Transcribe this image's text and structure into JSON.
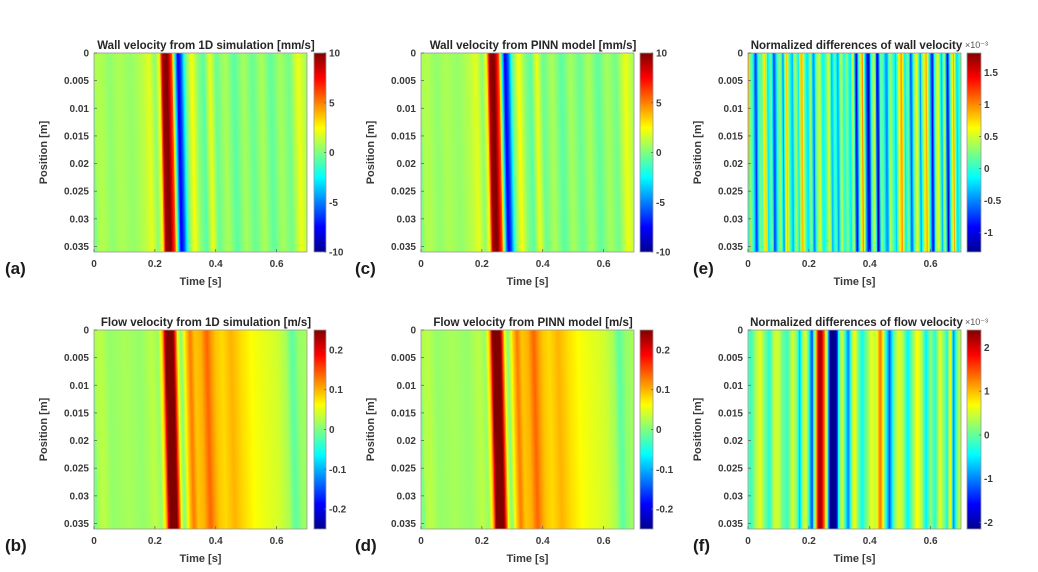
{
  "chart_data": [
    {
      "id": "a",
      "panel_label": "(a)",
      "type": "heatmap",
      "title": "Wall velocity from 1D simulation [mm/s]",
      "xlabel": "Time [s]",
      "ylabel": "Position [m]",
      "xlim": [
        0,
        0.7
      ],
      "ylim": [
        0,
        0.036
      ],
      "xticks": [
        "0",
        "0.2",
        "0.4",
        "0.6"
      ],
      "xtick_values": [
        0,
        0.2,
        0.4,
        0.6
      ],
      "yticks": [
        "0",
        "0.005",
        "0.01",
        "0.015",
        "0.02",
        "0.025",
        "0.03",
        "0.035"
      ],
      "ytick_values": [
        0,
        0.005,
        0.01,
        0.015,
        0.02,
        0.025,
        0.03,
        0.035
      ],
      "colorbar": {
        "range": [
          -10,
          10
        ],
        "ticks": [
          "10",
          "5",
          "0",
          "-5",
          "-10"
        ],
        "tick_values": [
          10,
          5,
          0,
          -5,
          -10
        ],
        "exponent": ""
      },
      "drift_s": 0.012,
      "bands": {
        "t": [
          0,
          0.02,
          0.05,
          0.08,
          0.12,
          0.16,
          0.18,
          0.2,
          0.215,
          0.225,
          0.24,
          0.255,
          0.265,
          0.275,
          0.285,
          0.3,
          0.32,
          0.34,
          0.36,
          0.38,
          0.4,
          0.43,
          0.46,
          0.49,
          0.52,
          0.55,
          0.58,
          0.61,
          0.64,
          0.67,
          0.7
        ],
        "v": [
          0.8,
          1.0,
          0.3,
          0.9,
          0.4,
          1.2,
          2.0,
          0.2,
          2.5,
          9.5,
          10,
          6,
          -2,
          -8,
          -6,
          -0.5,
          2.5,
          0.2,
          -0.8,
          2.2,
          -0.5,
          0.9,
          -0.8,
          0.8,
          -0.5,
          0.9,
          -0.7,
          0.8,
          -0.3,
          2.2,
          0.5
        ]
      }
    },
    {
      "id": "c",
      "panel_label": "(c)",
      "type": "heatmap",
      "title": "Wall velocity from PINN model [mm/s]",
      "xlabel": "Time [s]",
      "ylabel": "Position [m]",
      "xlim": [
        0,
        0.7
      ],
      "ylim": [
        0,
        0.036
      ],
      "xticks": [
        "0",
        "0.2",
        "0.4",
        "0.6"
      ],
      "xtick_values": [
        0,
        0.2,
        0.4,
        0.6
      ],
      "yticks": [
        "0",
        "0.005",
        "0.01",
        "0.015",
        "0.02",
        "0.025",
        "0.03",
        "0.035"
      ],
      "ytick_values": [
        0,
        0.005,
        0.01,
        0.015,
        0.02,
        0.025,
        0.03,
        0.035
      ],
      "colorbar": {
        "range": [
          -10,
          10
        ],
        "ticks": [
          "10",
          "5",
          "0",
          "-5",
          "-10"
        ],
        "tick_values": [
          10,
          5,
          0,
          -5,
          -10
        ],
        "exponent": ""
      },
      "drift_s": 0.012,
      "bands": {
        "t": [
          0,
          0.02,
          0.05,
          0.08,
          0.12,
          0.16,
          0.18,
          0.2,
          0.215,
          0.225,
          0.24,
          0.255,
          0.265,
          0.275,
          0.285,
          0.3,
          0.32,
          0.34,
          0.36,
          0.38,
          0.4,
          0.43,
          0.46,
          0.49,
          0.52,
          0.55,
          0.58,
          0.61,
          0.64,
          0.67,
          0.7
        ],
        "v": [
          0.8,
          1.0,
          0.3,
          0.9,
          0.4,
          1.2,
          2.0,
          0.2,
          2.5,
          9.5,
          10,
          6,
          -2,
          -8,
          -6,
          -0.5,
          2.5,
          0.2,
          -0.8,
          2.2,
          -0.5,
          0.9,
          -0.8,
          0.8,
          -0.5,
          0.9,
          -0.7,
          0.8,
          -0.3,
          2.2,
          0.5
        ]
      }
    },
    {
      "id": "e",
      "panel_label": "(e)",
      "type": "heatmap",
      "title": "Normalized differences of wall velocity",
      "xlabel": "Time [s]",
      "ylabel": "Position [m]",
      "xlim": [
        0,
        0.7
      ],
      "ylim": [
        0,
        0.036
      ],
      "xticks": [
        "0",
        "0.2",
        "0.4",
        "0.6"
      ],
      "xtick_values": [
        0,
        0.2,
        0.4,
        0.6
      ],
      "yticks": [
        "0",
        "0.005",
        "0.01",
        "0.015",
        "0.02",
        "0.025",
        "0.03",
        "0.035"
      ],
      "ytick_values": [
        0,
        0.005,
        0.01,
        0.015,
        0.02,
        0.025,
        0.03,
        0.035
      ],
      "colorbar": {
        "range": [
          -1.3,
          1.8
        ],
        "ticks": [
          "1.5",
          "1",
          "0.5",
          "0",
          "-0.5",
          "-1"
        ],
        "tick_values": [
          1.5,
          1,
          0.5,
          0,
          -0.5,
          -1
        ],
        "exponent": "×10⁻³"
      },
      "drift_s": 0.004,
      "bands": {
        "t": [
          0,
          0.005,
          0.015,
          0.025,
          0.035,
          0.045,
          0.055,
          0.065,
          0.075,
          0.085,
          0.095,
          0.105,
          0.115,
          0.125,
          0.135,
          0.145,
          0.155,
          0.165,
          0.175,
          0.185,
          0.195,
          0.205,
          0.215,
          0.225,
          0.235,
          0.245,
          0.255,
          0.265,
          0.275,
          0.285,
          0.295,
          0.305,
          0.315,
          0.325,
          0.335,
          0.345,
          0.355,
          0.365,
          0.375,
          0.385,
          0.395,
          0.405,
          0.415,
          0.425,
          0.435,
          0.445,
          0.455,
          0.465,
          0.475,
          0.485,
          0.495,
          0.505,
          0.515,
          0.525,
          0.535,
          0.545,
          0.555,
          0.565,
          0.575,
          0.585,
          0.595,
          0.605,
          0.615,
          0.625,
          0.635,
          0.645,
          0.655,
          0.665,
          0.675,
          0.685,
          0.695,
          0.7
        ],
        "v": [
          1.2,
          0.3,
          0.0,
          -0.8,
          0.2,
          0.1,
          0.9,
          -0.3,
          0.3,
          -0.8,
          0.0,
          0.4,
          -0.5,
          0.9,
          0.1,
          -0.4,
          0.5,
          -0.2,
          1.0,
          0.2,
          -0.3,
          0.4,
          -0.6,
          0.3,
          0.5,
          -0.2,
          0.1,
          0.6,
          -0.4,
          0.2,
          -0.5,
          0.5,
          -0.1,
          0.3,
          -0.3,
          0.6,
          -1.1,
          0.2,
          1.0,
          -0.3,
          -1.2,
          0.1,
          0.5,
          -1.3,
          0.3,
          0.0,
          -0.6,
          0.4,
          0.1,
          -0.3,
          0.6,
          1.0,
          -0.2,
          0.3,
          -0.7,
          0.2,
          0.7,
          -0.5,
          0.4,
          0.9,
          0.0,
          -1.0,
          0.3,
          0.6,
          -0.4,
          0.5,
          -1.1,
          0.2,
          0.9,
          -0.3,
          0.1,
          0.2
        ]
      }
    },
    {
      "id": "b",
      "panel_label": "(b)",
      "type": "heatmap",
      "title": "Flow velocity from 1D simulation [m/s]",
      "xlabel": "Time [s]",
      "ylabel": "Position [m]",
      "xlim": [
        0,
        0.7
      ],
      "ylim": [
        0,
        0.036
      ],
      "xticks": [
        "0",
        "0.2",
        "0.4",
        "0.6"
      ],
      "xtick_values": [
        0,
        0.2,
        0.4,
        0.6
      ],
      "yticks": [
        "0",
        "0.005",
        "0.01",
        "0.015",
        "0.02",
        "0.025",
        "0.03",
        "0.035"
      ],
      "ytick_values": [
        0,
        0.005,
        0.01,
        0.015,
        0.02,
        0.025,
        0.03,
        0.035
      ],
      "colorbar": {
        "range": [
          -0.25,
          0.25
        ],
        "ticks": [
          "0.2",
          "0.1",
          "0",
          "-0.1",
          "-0.2"
        ],
        "tick_values": [
          0.2,
          0.1,
          0,
          -0.1,
          -0.2
        ],
        "exponent": ""
      },
      "drift_s": 0.014,
      "bands": {
        "t": [
          0,
          0.02,
          0.05,
          0.1,
          0.15,
          0.19,
          0.21,
          0.225,
          0.235,
          0.26,
          0.275,
          0.285,
          0.3,
          0.315,
          0.33,
          0.35,
          0.37,
          0.385,
          0.4,
          0.42,
          0.45,
          0.48,
          0.52,
          0.56,
          0.6,
          0.63,
          0.65,
          0.67,
          0.7
        ],
        "v": [
          0.02,
          0.03,
          0.01,
          0.02,
          0.01,
          0.03,
          0.01,
          0.1,
          0.25,
          0.25,
          0.05,
          0.0,
          0.08,
          0.13,
          0.09,
          0.1,
          0.14,
          0.11,
          0.09,
          0.08,
          0.1,
          0.08,
          0.06,
          0.05,
          0.04,
          0.02,
          -0.02,
          0.01,
          0.02
        ]
      }
    },
    {
      "id": "d",
      "panel_label": "(d)",
      "type": "heatmap",
      "title": "Flow velocity from PINN model [m/s]",
      "xlabel": "Time [s]",
      "ylabel": "Position [m]",
      "xlim": [
        0,
        0.7
      ],
      "ylim": [
        0,
        0.036
      ],
      "xticks": [
        "0",
        "0.2",
        "0.4",
        "0.6"
      ],
      "xtick_values": [
        0,
        0.2,
        0.4,
        0.6
      ],
      "yticks": [
        "0",
        "0.005",
        "0.01",
        "0.015",
        "0.02",
        "0.025",
        "0.03",
        "0.035"
      ],
      "ytick_values": [
        0,
        0.005,
        0.01,
        0.015,
        0.02,
        0.025,
        0.03,
        0.035
      ],
      "colorbar": {
        "range": [
          -0.25,
          0.25
        ],
        "ticks": [
          "0.2",
          "0.1",
          "0",
          "-0.1",
          "-0.2"
        ],
        "tick_values": [
          0.2,
          0.1,
          0,
          -0.1,
          -0.2
        ],
        "exponent": ""
      },
      "drift_s": 0.014,
      "bands": {
        "t": [
          0,
          0.02,
          0.05,
          0.1,
          0.15,
          0.19,
          0.21,
          0.225,
          0.235,
          0.26,
          0.275,
          0.285,
          0.3,
          0.315,
          0.33,
          0.35,
          0.37,
          0.385,
          0.4,
          0.42,
          0.45,
          0.48,
          0.52,
          0.56,
          0.6,
          0.63,
          0.65,
          0.67,
          0.7
        ],
        "v": [
          0.02,
          0.03,
          0.01,
          0.02,
          0.01,
          0.03,
          0.01,
          0.1,
          0.25,
          0.25,
          0.05,
          0.0,
          0.08,
          0.13,
          0.09,
          0.1,
          0.14,
          0.11,
          0.09,
          0.08,
          0.1,
          0.08,
          0.06,
          0.05,
          0.04,
          0.02,
          -0.02,
          0.01,
          0.02
        ]
      }
    },
    {
      "id": "f",
      "panel_label": "(f)",
      "type": "heatmap",
      "title": "Normalized differences of flow velocity",
      "xlabel": "Time [s]",
      "ylabel": "Position [m]",
      "xlim": [
        0,
        0.7
      ],
      "ylim": [
        0,
        0.036
      ],
      "xticks": [
        "0",
        "0.2",
        "0.4",
        "0.6"
      ],
      "xtick_values": [
        0,
        0.2,
        0.4,
        0.6
      ],
      "yticks": [
        "0",
        "0.005",
        "0.01",
        "0.015",
        "0.02",
        "0.025",
        "0.03",
        "0.035"
      ],
      "ytick_values": [
        0,
        0.005,
        0.01,
        0.015,
        0.02,
        0.025,
        0.03,
        0.035
      ],
      "colorbar": {
        "range": [
          -2.15,
          2.4
        ],
        "ticks": [
          "2",
          "1",
          "0",
          "-1",
          "-2"
        ],
        "tick_values": [
          2,
          1,
          0,
          -1,
          -2
        ],
        "exponent": "×10⁻³"
      },
      "drift_s": 0.0,
      "bands": {
        "t": [
          0,
          0.01,
          0.025,
          0.04,
          0.055,
          0.07,
          0.085,
          0.1,
          0.115,
          0.13,
          0.145,
          0.16,
          0.17,
          0.18,
          0.19,
          0.2,
          0.21,
          0.22,
          0.23,
          0.24,
          0.25,
          0.26,
          0.27,
          0.28,
          0.29,
          0.3,
          0.31,
          0.32,
          0.33,
          0.34,
          0.35,
          0.36,
          0.375,
          0.39,
          0.405,
          0.42,
          0.435,
          0.445,
          0.455,
          0.465,
          0.48,
          0.495,
          0.51,
          0.525,
          0.54,
          0.555,
          0.57,
          0.585,
          0.6,
          0.615,
          0.63,
          0.645,
          0.655,
          0.665,
          0.675,
          0.69,
          0.7
        ],
        "v": [
          0.0,
          -0.2,
          0.3,
          0.6,
          0.1,
          -0.3,
          0.4,
          0.5,
          0.0,
          -0.2,
          0.5,
          0.2,
          -0.8,
          0.3,
          0.6,
          -0.2,
          -1.4,
          0.3,
          2.0,
          2.3,
          1.4,
          0.2,
          -2.1,
          -2.2,
          -2.0,
          0.1,
          0.5,
          -0.3,
          -1.1,
          0.2,
          0.7,
          0.2,
          -0.4,
          0.1,
          0.6,
          0.4,
          1.4,
          0.5,
          -0.4,
          -1.2,
          0.0,
          0.6,
          0.3,
          -0.5,
          0.1,
          0.7,
          0.4,
          -0.5,
          0.2,
          -0.3,
          0.6,
          0.1,
          -0.4,
          0.9,
          -1.0,
          0.3,
          0.4
        ]
      }
    }
  ]
}
